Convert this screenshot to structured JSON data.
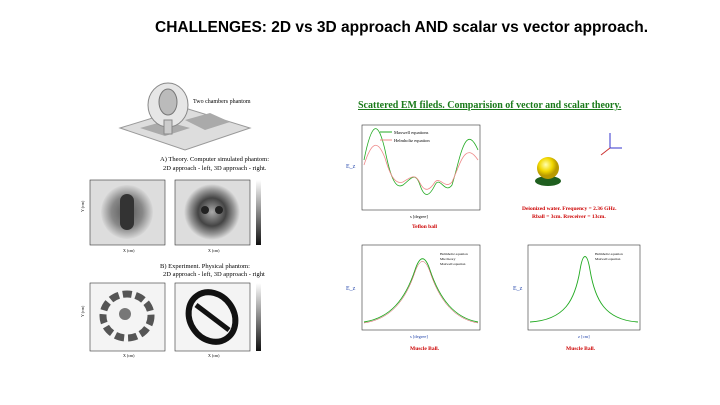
{
  "header": {
    "title": "CHALLENGES: 2D vs 3D approach  AND scalar vs vector approach."
  },
  "left": {
    "phantom_label": "Two chambers phantom",
    "theory": [
      "A) Theory. Computer simulated phantom:",
      "2D approach - left, 3D approach - right."
    ],
    "experiment": [
      "B) Experiment. Physical phantom:",
      "2D approach - left, 3D approach - right"
    ],
    "axis_x": "X (cm)",
    "axis_y": "Y (cm)"
  },
  "right": {
    "heading": "Scattered EM fileds. Comparision of vector and scalar theory.",
    "top_plot": {
      "ylabel": "E_z",
      "xlabel": "s [degree]",
      "legend": [
        "Maxwell equations",
        "Helmholtz equation"
      ],
      "caption": "Teflon ball"
    },
    "conditions": [
      "Deionized water. Frequency = 2.36 GHz.",
      "Rball = 3cm.  Rreceiver = 13cm."
    ],
    "bottom_left": {
      "ylabel": "E_z",
      "xlabel": "s [degree]",
      "legend": [
        "Helmholtz equation",
        "Mie theory",
        "Maxwell equation"
      ],
      "caption": "Muscle Ball."
    },
    "bottom_right": {
      "ylabel": "E_z",
      "xlabel": "z [cm]",
      "legend": [
        "Helmholtz equation",
        "Maxwell equation"
      ],
      "caption": "Muscle Ball."
    }
  }
}
